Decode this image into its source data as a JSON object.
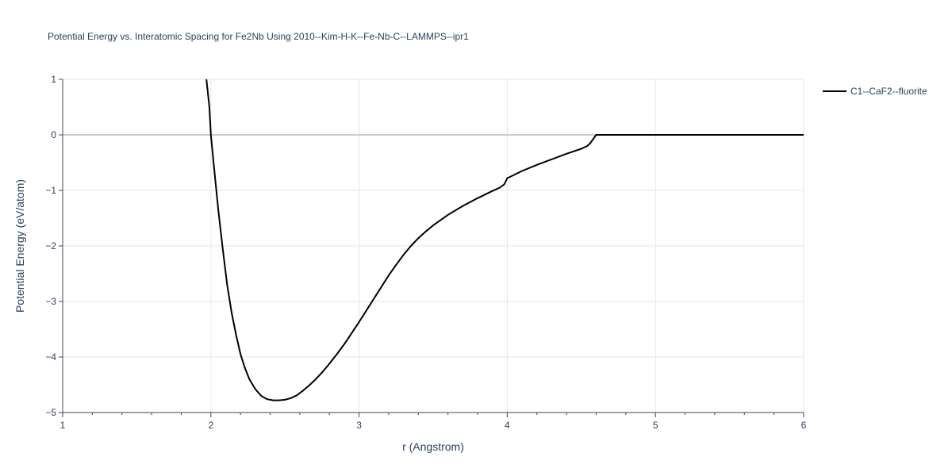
{
  "chart_data": {
    "type": "line",
    "title": "Potential Energy vs. Interatomic Spacing for Fe2Nb Using 2010--Kim-H-K--Fe-Nb-C--LAMMPS--ipr1",
    "xlabel": "r (Angstrom)",
    "ylabel": "Potential Energy (eV/atom)",
    "xlim": [
      1,
      6
    ],
    "ylim": [
      -5,
      1
    ],
    "xticks": [
      "1",
      "2",
      "3",
      "4",
      "5",
      "6"
    ],
    "yticks": [
      "1",
      "0",
      "−1",
      "−2",
      "−3",
      "−4",
      "−5"
    ],
    "grid": true,
    "legend_position": "top-right",
    "series": [
      {
        "name": "C1--CaF2--fluorite",
        "color": "#000000",
        "x": [
          1.97,
          1.99,
          2.0,
          2.02,
          2.05,
          2.08,
          2.11,
          2.14,
          2.17,
          2.2,
          2.23,
          2.26,
          2.3,
          2.34,
          2.38,
          2.42,
          2.46,
          2.5,
          2.54,
          2.58,
          2.62,
          2.66,
          2.7,
          2.75,
          2.8,
          2.85,
          2.9,
          2.95,
          3.0,
          3.05,
          3.1,
          3.15,
          3.2,
          3.25,
          3.3,
          3.35,
          3.4,
          3.45,
          3.5,
          3.6,
          3.7,
          3.8,
          3.9,
          3.95,
          3.98,
          4.0,
          4.1,
          4.2,
          4.3,
          4.4,
          4.5,
          4.54,
          4.56,
          4.6,
          5.0,
          5.5,
          6.0
        ],
        "y": [
          1.0,
          0.5,
          0.0,
          -0.55,
          -1.35,
          -2.05,
          -2.7,
          -3.2,
          -3.6,
          -3.95,
          -4.2,
          -4.4,
          -4.58,
          -4.7,
          -4.76,
          -4.78,
          -4.78,
          -4.77,
          -4.74,
          -4.69,
          -4.61,
          -4.52,
          -4.42,
          -4.28,
          -4.12,
          -3.95,
          -3.77,
          -3.57,
          -3.37,
          -3.16,
          -2.95,
          -2.74,
          -2.53,
          -2.34,
          -2.16,
          -2.0,
          -1.86,
          -1.74,
          -1.63,
          -1.44,
          -1.28,
          -1.14,
          -1.01,
          -0.95,
          -0.89,
          -0.78,
          -0.65,
          -0.54,
          -0.44,
          -0.34,
          -0.25,
          -0.2,
          -0.15,
          0.0,
          0.0,
          0.0,
          0.0
        ]
      }
    ]
  }
}
